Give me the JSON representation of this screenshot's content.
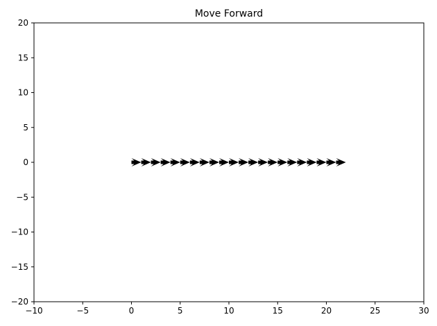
{
  "chart_data": {
    "type": "quiver",
    "title": "Move Forward",
    "xlabel": "",
    "ylabel": "",
    "xlim": [
      -10,
      30
    ],
    "ylim": [
      -20,
      20
    ],
    "xticks": [
      -10,
      -5,
      0,
      5,
      10,
      15,
      20,
      25,
      30
    ],
    "yticks": [
      -20,
      -15,
      -10,
      -5,
      0,
      5,
      10,
      15,
      20
    ],
    "xtick_labels": [
      "−10",
      "−5",
      "0",
      "5",
      "10",
      "15",
      "20",
      "25",
      "30"
    ],
    "ytick_labels": [
      "−20",
      "−15",
      "−10",
      "−5",
      "0",
      "5",
      "10",
      "15",
      "20"
    ],
    "grid": false,
    "series": [
      {
        "x": [
          0,
          1,
          2,
          3,
          4,
          5,
          6,
          7,
          8,
          9,
          10,
          11,
          12,
          13,
          14,
          15,
          16,
          17,
          18,
          19,
          20,
          21
        ],
        "y": [
          0,
          0,
          0,
          0,
          0,
          0,
          0,
          0,
          0,
          0,
          0,
          0,
          0,
          0,
          0,
          0,
          0,
          0,
          0,
          0,
          0,
          0
        ],
        "u": [
          1,
          1,
          1,
          1,
          1,
          1,
          1,
          1,
          1,
          1,
          1,
          1,
          1,
          1,
          1,
          1,
          1,
          1,
          1,
          1,
          1,
          1
        ],
        "v": [
          0,
          0,
          0,
          0,
          0,
          0,
          0,
          0,
          0,
          0,
          0,
          0,
          0,
          0,
          0,
          0,
          0,
          0,
          0,
          0,
          0,
          0
        ],
        "color": "#000000"
      }
    ]
  }
}
